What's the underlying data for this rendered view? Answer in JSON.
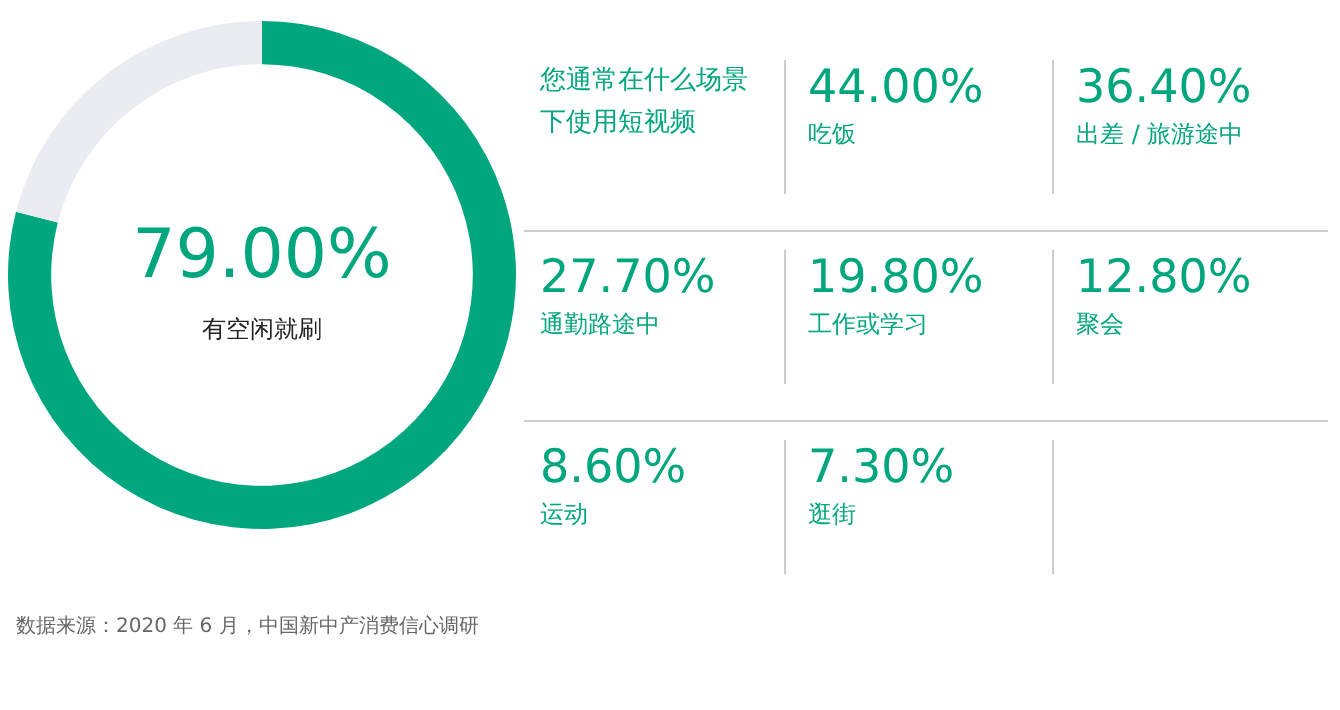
{
  "chart_data": [
    {
      "type": "donut",
      "categories": [
        "有空闲就刷",
        null
      ],
      "values": [
        79,
        21
      ],
      "colors": [
        "#00a67e",
        "#ebebf2"
      ],
      "value_labels": [
        "79.00%",
        null
      ]
    },
    {
      "type": "other",
      "title": "您通常在什么场景下使用短视频",
      "annotations": [
        "44.00%",
        "吃饭",
        "36.40%",
        "出差 / 旅游途中",
        "27.70%",
        "通勤路途中",
        "19.80%",
        "工作或学习",
        "12.80%",
        "聚会",
        "8.60%",
        "运动",
        "7.30%",
        "逛街",
        "数据来源：2020 年 6 月，中国新中产消费信心调研"
      ]
    }
  ]
}
